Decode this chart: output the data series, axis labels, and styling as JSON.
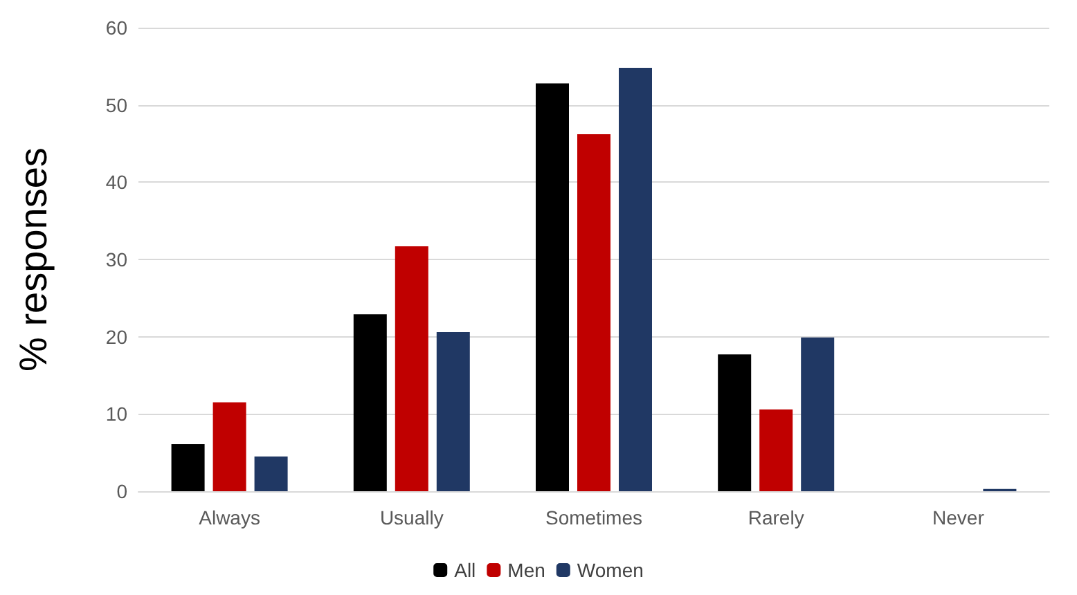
{
  "chart_data": {
    "type": "bar",
    "ylabel": "% responses",
    "categories": [
      "Always",
      "Usually",
      "Sometimes",
      "Rarely",
      "Never"
    ],
    "series": [
      {
        "name": "All",
        "color": "#000000",
        "values": [
          6.1,
          22.9,
          52.8,
          17.7,
          0
        ]
      },
      {
        "name": "Men",
        "color": "#c00000",
        "values": [
          11.5,
          31.7,
          46.2,
          10.6,
          0
        ]
      },
      {
        "name": "Women",
        "color": "#203864",
        "values": [
          4.5,
          20.6,
          54.8,
          19.9,
          0.3
        ]
      }
    ],
    "ylim": [
      0,
      60
    ],
    "yticks": [
      0,
      10,
      20,
      30,
      40,
      50,
      60
    ],
    "grid": "y",
    "legend": "bottom"
  }
}
